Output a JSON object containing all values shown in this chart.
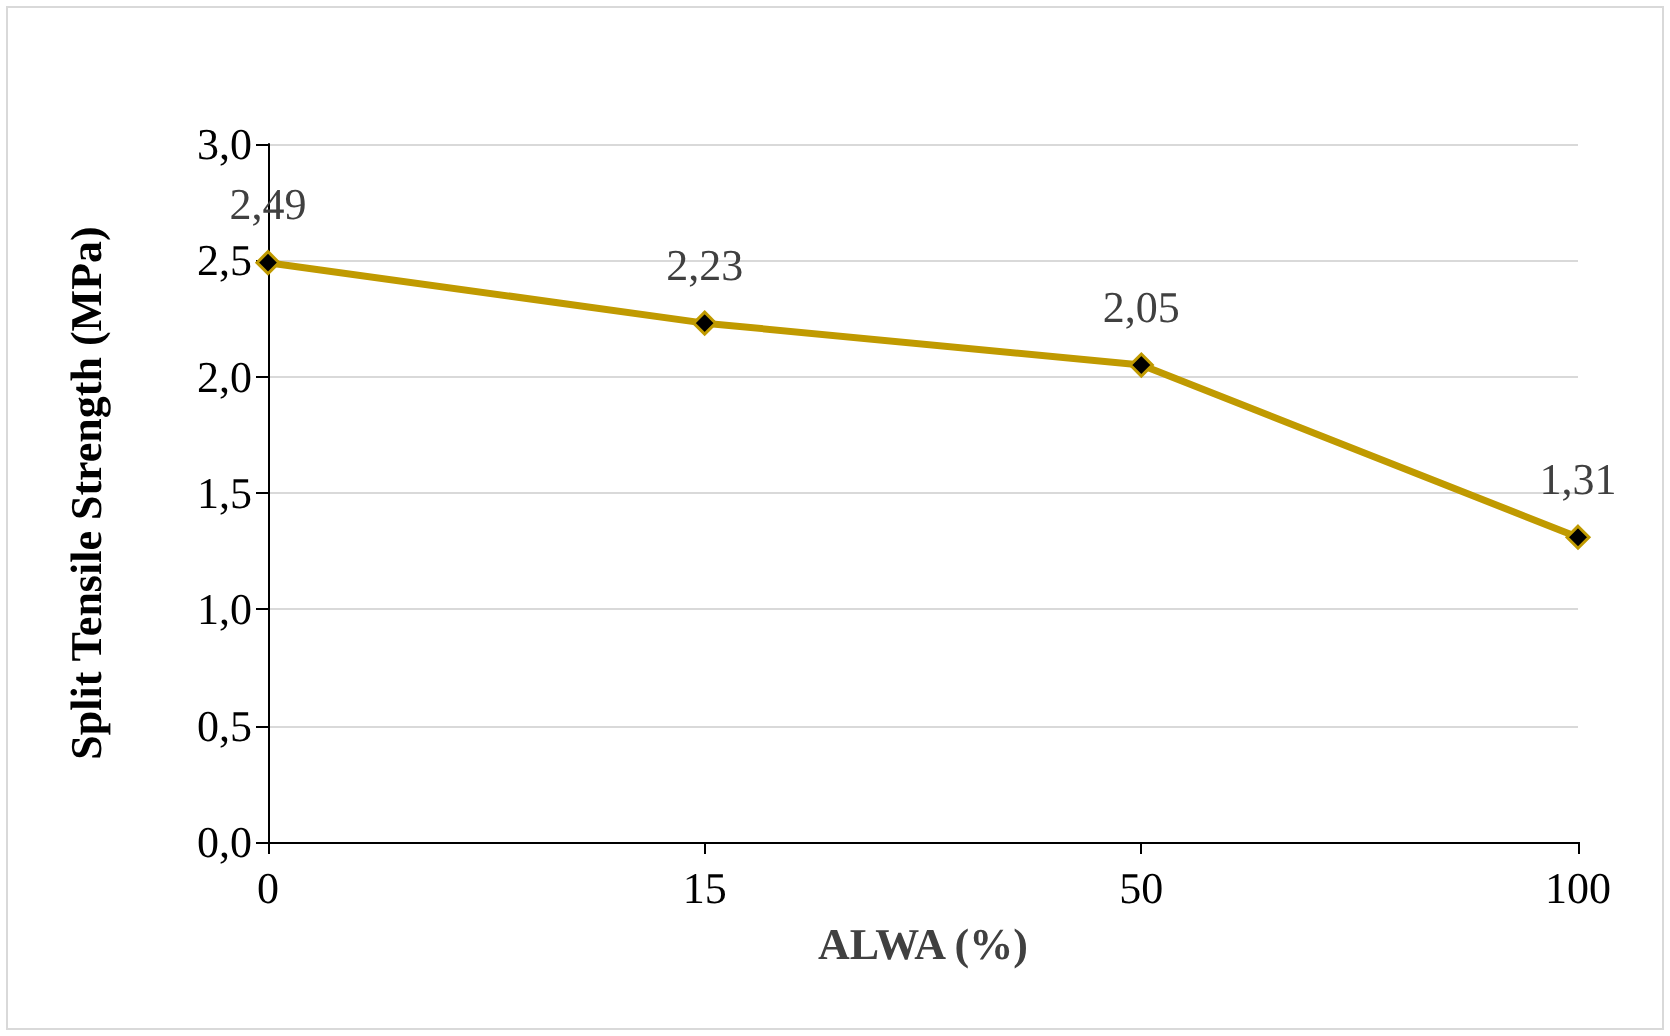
{
  "chart_data": {
    "type": "line",
    "xlabel": "ALWA (%)",
    "ylabel": "Split Tensile Strength (MPa)",
    "categories": [
      "0",
      "15",
      "50",
      "100"
    ],
    "series": [
      {
        "color": "#c09a00",
        "values": [
          2.49,
          2.23,
          2.05,
          1.31
        ],
        "value_labels": [
          "2,49",
          "2,23",
          "2,05",
          "1,31"
        ]
      }
    ],
    "ylim": [
      0,
      3
    ],
    "yticks": [
      {
        "value": 0,
        "label": "0,0"
      },
      {
        "value": 0.5,
        "label": "0,5"
      },
      {
        "value": 1,
        "label": "1,0"
      },
      {
        "value": 1.5,
        "label": "1,5"
      },
      {
        "value": 2,
        "label": "2,0"
      },
      {
        "value": 2.5,
        "label": "2,5"
      },
      {
        "value": 3,
        "label": "3,0"
      }
    ],
    "grid": "y",
    "marker": "diamond",
    "line_style": "solid"
  }
}
